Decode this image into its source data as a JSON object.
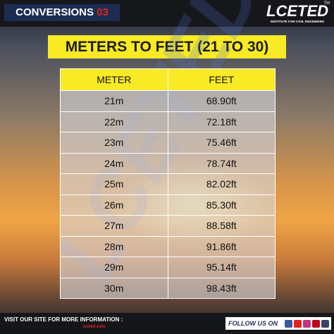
{
  "header": {
    "series": "CONVERSIONS",
    "number": "03",
    "logo": {
      "name": "LCETED",
      "mark": "TM",
      "subtitle": "INSTITUTE FOR CIVIL ENGINEERS"
    }
  },
  "title": "METERS TO FEET (21 TO 30)",
  "table": {
    "columns": [
      "METER",
      "FEET"
    ],
    "rows": [
      [
        "21m",
        "68.90ft"
      ],
      [
        "22m",
        "72.18ft"
      ],
      [
        "23m",
        "75.46ft"
      ],
      [
        "24m",
        "78.74ft"
      ],
      [
        "25m",
        "82.02ft"
      ],
      [
        "26m",
        "85.30ft"
      ],
      [
        "27m",
        "88.58ft"
      ],
      [
        "28m",
        "91.86ft"
      ],
      [
        "29m",
        "95.14ft"
      ],
      [
        "30m",
        "98.43ft"
      ]
    ]
  },
  "footer": {
    "visit": "VISIT OUR SITE FOR MORE INFORMATION :",
    "website": "lceted.com",
    "follow": "FOLLOW US ON"
  }
}
